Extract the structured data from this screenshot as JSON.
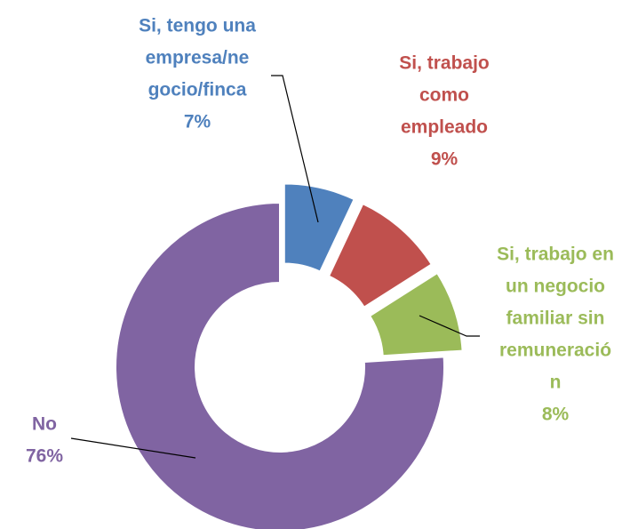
{
  "chart_data": {
    "type": "donut",
    "categories": [
      [
        "Si, tengo una",
        "empresa/ne",
        "gocio/finca"
      ],
      [
        "Si, trabajo",
        "como",
        "empleado"
      ],
      [
        "Si, trabajo en",
        "un negocio",
        "familiar sin",
        "remuneració",
        "n"
      ],
      [
        "No"
      ]
    ],
    "values": [
      7,
      9,
      8,
      76
    ],
    "value_labels": [
      "7%",
      "9%",
      "8%",
      "76%"
    ],
    "colors": [
      "#4f81bd",
      "#c0504d",
      "#9bbb59",
      "#8064a2"
    ]
  }
}
